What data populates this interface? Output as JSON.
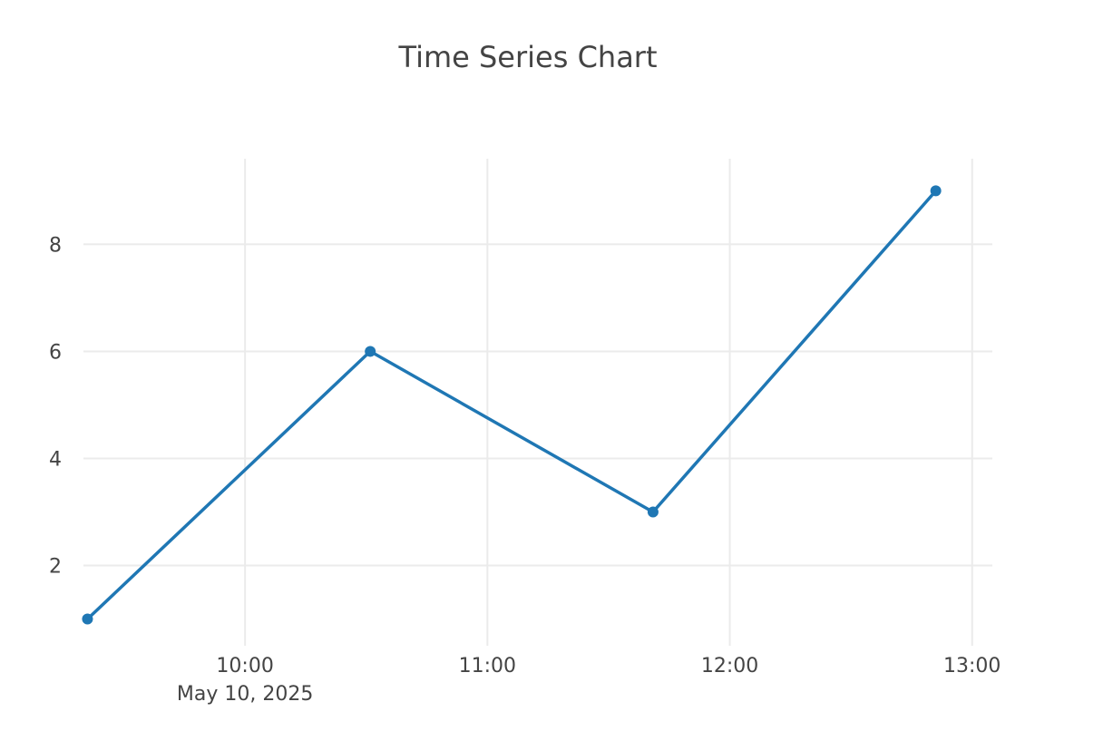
{
  "chart_data": {
    "type": "line",
    "title": "Time Series Chart",
    "xlabel": "",
    "ylabel": "",
    "x_axis_type": "date",
    "x_range": [
      "2025-05-10 09:20",
      "2025-05-10 13:05"
    ],
    "ylim": [
      0.5,
      9.6
    ],
    "x_ticks": [
      {
        "value": "2025-05-10 10:00",
        "label": "10:00"
      },
      {
        "value": "2025-05-10 11:00",
        "label": "11:00"
      },
      {
        "value": "2025-05-10 12:00",
        "label": "12:00"
      },
      {
        "value": "2025-05-10 13:00",
        "label": "13:00"
      }
    ],
    "x_date_label": "May 10, 2025",
    "y_ticks": [
      2,
      4,
      6,
      8
    ],
    "grid": true,
    "legend": "none",
    "series": [
      {
        "color": "#1f77b4",
        "mode": "lines+markers",
        "x": [
          "2025-05-10 09:21",
          "2025-05-10 10:31",
          "2025-05-10 11:41",
          "2025-05-10 12:51"
        ],
        "y": [
          1,
          6,
          3,
          9
        ]
      }
    ]
  }
}
